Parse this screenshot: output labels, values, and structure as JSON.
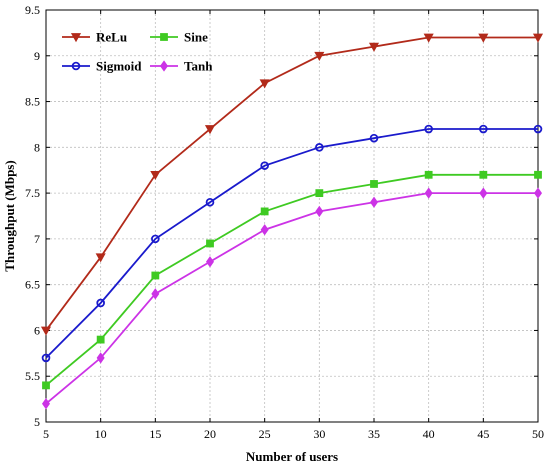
{
  "chart_data": {
    "type": "line",
    "title": "",
    "xlabel": "Number of users",
    "ylabel": "Throughput (Mbps)",
    "x": [
      5,
      10,
      15,
      20,
      25,
      30,
      35,
      40,
      45,
      50
    ],
    "xlim": [
      5,
      50
    ],
    "ylim": [
      5,
      9.5
    ],
    "xticks": [
      "5",
      "10",
      "15",
      "20",
      "25",
      "30",
      "35",
      "40",
      "45",
      "50"
    ],
    "yticks": [
      "5",
      "5.5",
      "6",
      "6.5",
      "7",
      "7.5",
      "8",
      "8.5",
      "9",
      "9.5"
    ],
    "grid": true,
    "legend_position": "top-left",
    "series": [
      {
        "name": "ReLu",
        "color": "#b22a1a",
        "marker": "triangle-down",
        "values": [
          6.0,
          6.8,
          7.7,
          8.2,
          8.7,
          9.0,
          9.1,
          9.2,
          9.2,
          9.2
        ]
      },
      {
        "name": "Sine",
        "color": "#3fca22",
        "marker": "square",
        "values": [
          5.4,
          5.9,
          6.6,
          6.95,
          7.3,
          7.5,
          7.6,
          7.7,
          7.7,
          7.7
        ]
      },
      {
        "name": "Sigmoid",
        "color": "#1a1acc",
        "marker": "circle",
        "values": [
          5.7,
          6.3,
          7.0,
          7.4,
          7.8,
          8.0,
          8.1,
          8.2,
          8.2,
          8.2
        ]
      },
      {
        "name": "Tanh",
        "color": "#cc33e6",
        "marker": "diamond",
        "values": [
          5.2,
          5.7,
          6.4,
          6.75,
          7.1,
          7.3,
          7.4,
          7.5,
          7.5,
          7.5
        ]
      }
    ]
  }
}
